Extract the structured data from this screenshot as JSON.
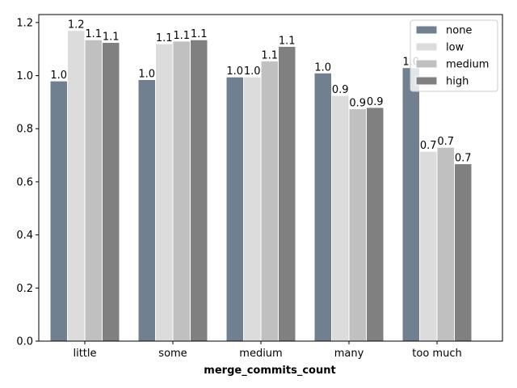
{
  "chart_data": {
    "type": "bar",
    "xlabel": "merge_commits_count",
    "ylabel": "",
    "title": "",
    "categories": [
      "little",
      "some",
      "medium",
      "many",
      "too much"
    ],
    "ylim": [
      0,
      1.23
    ],
    "yticks": [
      0.0,
      0.2,
      0.4,
      0.6,
      0.8,
      1.0,
      1.2
    ],
    "legend_position": "top-right",
    "series": [
      {
        "name": "none",
        "color": "#708090",
        "values": [
          0.98,
          0.985,
          0.995,
          1.01,
          1.03
        ],
        "labels": [
          "1.0",
          "1.0",
          "1.0",
          "1.0",
          "1.0"
        ]
      },
      {
        "name": "low",
        "color": "#dcdcdc",
        "values": [
          1.17,
          1.12,
          0.995,
          0.925,
          0.715
        ],
        "labels": [
          "1.2",
          "1.1",
          "1.0",
          "0.9",
          "0.7"
        ]
      },
      {
        "name": "medium",
        "color": "#c0c0c0",
        "values": [
          1.135,
          1.13,
          1.055,
          0.875,
          0.73
        ],
        "labels": [
          "1.1",
          "1.1",
          "1.1",
          "0.9",
          "0.7"
        ]
      },
      {
        "name": "high",
        "color": "#808080",
        "values": [
          1.125,
          1.135,
          1.11,
          0.88,
          0.668
        ],
        "labels": [
          "1.1",
          "1.1",
          "1.1",
          "0.9",
          "0.7"
        ]
      }
    ]
  }
}
